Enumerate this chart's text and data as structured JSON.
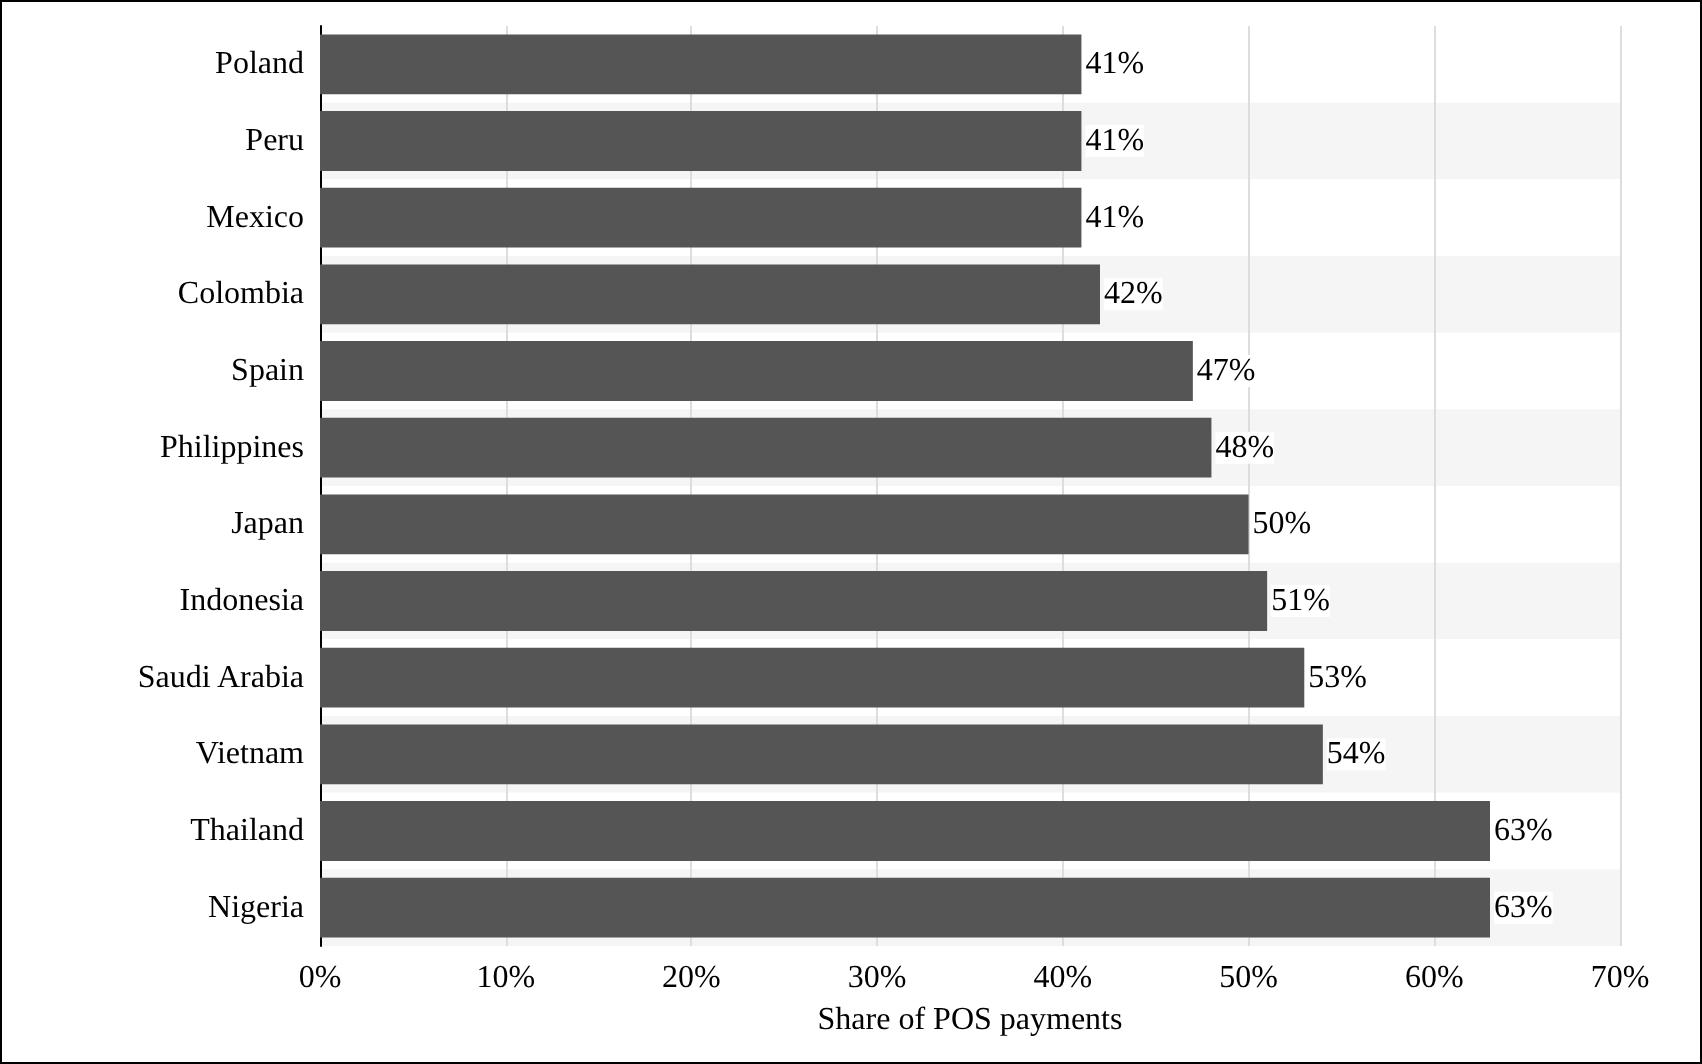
{
  "chart_data": {
    "type": "bar",
    "orientation": "horizontal",
    "xlabel": "Share of POS payments",
    "categories": [
      "Poland",
      "Peru",
      "Mexico",
      "Colombia",
      "Spain",
      "Philippines",
      "Japan",
      "Indonesia",
      "Saudi Arabia",
      "Vietnam",
      "Thailand",
      "Nigeria"
    ],
    "values": [
      41,
      41,
      41,
      42,
      47,
      48,
      50,
      51,
      53,
      54,
      63,
      63
    ],
    "value_labels": [
      "41%",
      "41%",
      "41%",
      "42%",
      "47%",
      "48%",
      "50%",
      "51%",
      "53%",
      "54%",
      "63%",
      "63%"
    ],
    "color": "#555555",
    "xlim": [
      0,
      70
    ],
    "xticks": [
      {
        "value": 0,
        "label": "0%"
      },
      {
        "value": 10,
        "label": "10%"
      },
      {
        "value": 20,
        "label": "20%"
      },
      {
        "value": 30,
        "label": "30%"
      },
      {
        "value": 40,
        "label": "40%"
      },
      {
        "value": 50,
        "label": "50%"
      },
      {
        "value": 60,
        "label": "60%"
      },
      {
        "value": 70,
        "label": "70%"
      }
    ],
    "grid": "x"
  }
}
